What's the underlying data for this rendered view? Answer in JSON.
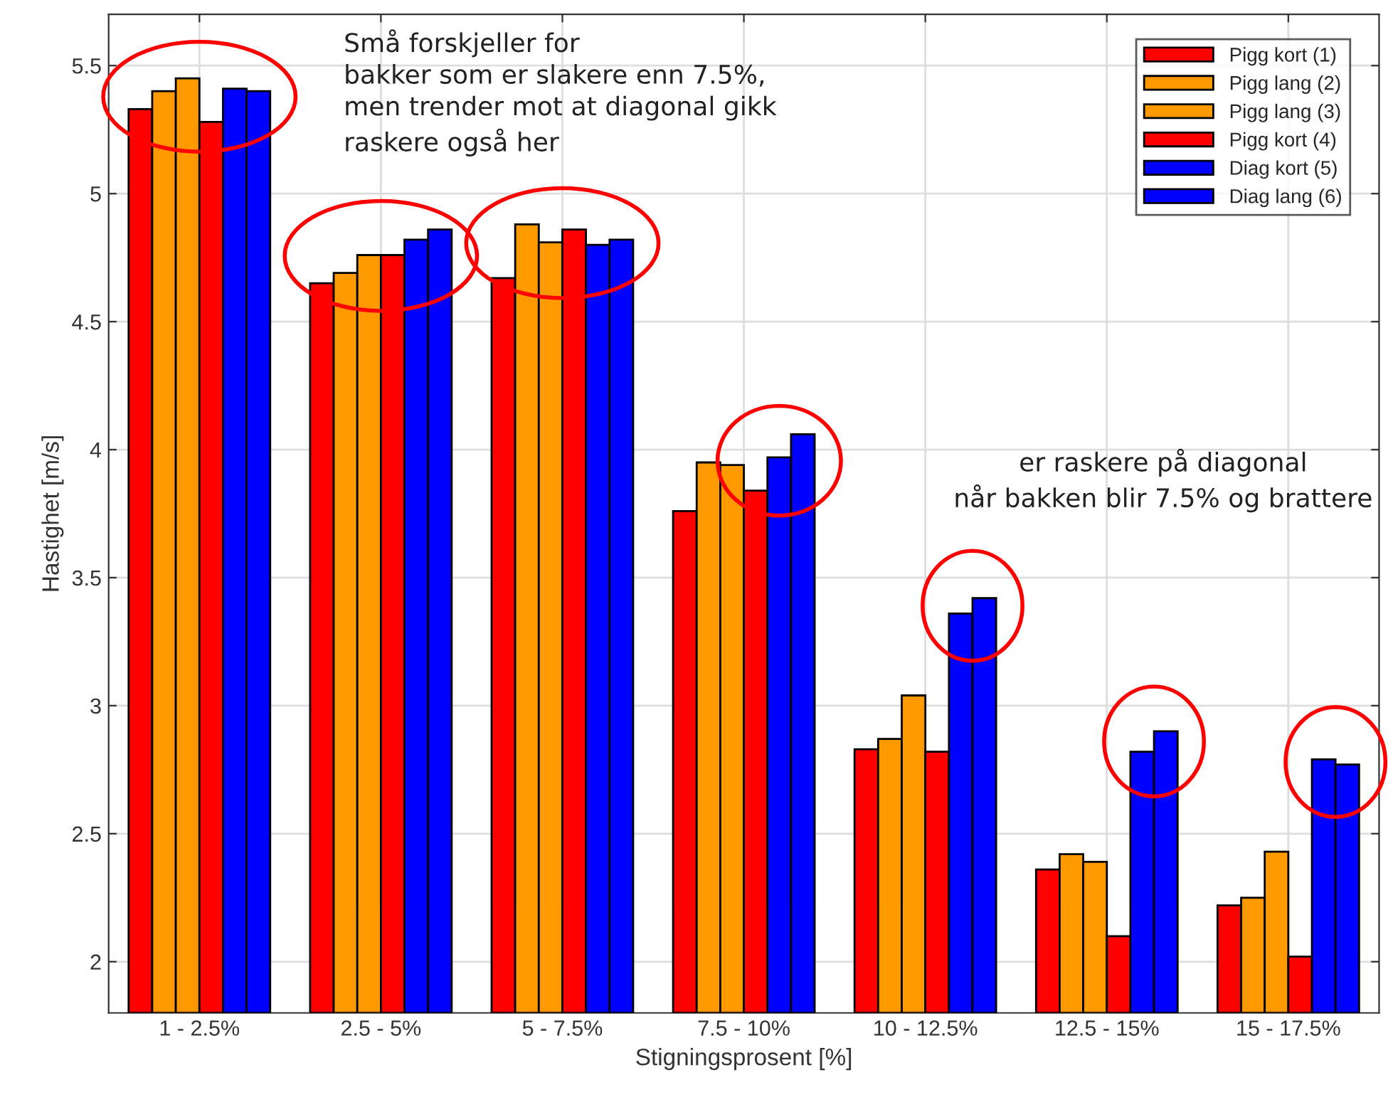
{
  "chart_data": {
    "type": "bar",
    "xlabel": "Stigningsprosent [%]",
    "ylabel": "Hastighet [m/s]",
    "categories": [
      "1 - 2.5%",
      "2.5 - 5%",
      "5 - 7.5%",
      "7.5 - 10%",
      "10 - 12.5%",
      "12.5 - 15%",
      "15 - 17.5%"
    ],
    "series": [
      {
        "name": "Pigg kort (1)",
        "color": "#ff0000",
        "values": [
          5.33,
          4.65,
          4.67,
          3.76,
          2.83,
          2.36,
          2.22
        ]
      },
      {
        "name": "Pigg lang (2)",
        "color": "#ff9900",
        "values": [
          5.4,
          4.69,
          4.88,
          3.95,
          2.87,
          2.42,
          2.25
        ]
      },
      {
        "name": "Pigg lang (3)",
        "color": "#ff9900",
        "values": [
          5.45,
          4.76,
          4.81,
          3.94,
          3.04,
          2.39,
          2.43
        ]
      },
      {
        "name": "Pigg kort (4)",
        "color": "#ff0000",
        "values": [
          5.28,
          4.76,
          4.86,
          3.84,
          2.82,
          2.1,
          2.02
        ]
      },
      {
        "name": "Diag kort (5)",
        "color": "#0000ff",
        "values": [
          5.41,
          4.82,
          4.8,
          3.97,
          3.36,
          2.82,
          2.79
        ]
      },
      {
        "name": "Diag lang (6)",
        "color": "#0000ff",
        "values": [
          5.4,
          4.86,
          4.82,
          4.06,
          3.42,
          2.9,
          2.77
        ]
      }
    ],
    "ylim": [
      1.8,
      5.7
    ],
    "yticks": [
      2,
      2.5,
      3,
      3.5,
      4,
      4.5,
      5,
      5.5
    ],
    "grid": true,
    "legend": "top right",
    "annotations": [
      "Små forskjeller for\nbakker som er slakere enn 7.5%,\nmen trender mot at diagonal gikk\nraskere også her",
      "er raskere på diagonal\nnår bakken blir 7.5% og brattere"
    ]
  }
}
